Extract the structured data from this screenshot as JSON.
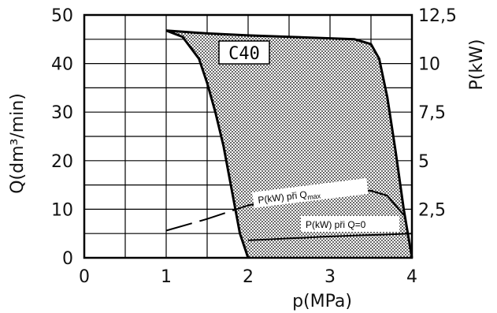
{
  "chart_data": {
    "type": "area",
    "x_axis": {
      "label": "p(MPa)",
      "ticks": [
        "0",
        "1",
        "2",
        "3",
        "4"
      ],
      "range": [
        0,
        4
      ]
    },
    "y_axis_left": {
      "label": "Q(dm³/min)",
      "ticks": [
        "0",
        "10",
        "20",
        "30",
        "40",
        "50"
      ],
      "range": [
        0,
        50
      ]
    },
    "y_axis_right": {
      "label": "P(kW)",
      "ticks": [
        "2,5",
        "5",
        "7,5",
        "10",
        "12,5"
      ],
      "range": [
        0,
        12.5
      ]
    },
    "region_label": "C40",
    "annotation_qmax": "P(kW) při Q",
    "annotation_qmax_sub": "max",
    "annotation_q0": "P(kW) při Q=0",
    "series": [
      {
        "name": "Q left boundary",
        "x": [
          1.0,
          1.2,
          1.4,
          1.5,
          1.6,
          1.7,
          1.8,
          1.9,
          2.0
        ],
        "y": [
          46.8,
          45.5,
          41.0,
          36.0,
          30.0,
          23.0,
          14.0,
          5.0,
          0.0
        ]
      },
      {
        "name": "Q right boundary",
        "x": [
          1.0,
          1.5,
          2.0,
          2.5,
          3.0,
          3.3,
          3.5,
          3.6,
          3.7,
          3.8,
          3.9,
          4.0
        ],
        "y": [
          46.8,
          46.2,
          45.8,
          45.5,
          45.2,
          45.0,
          44.0,
          41.0,
          33.0,
          22.0,
          10.0,
          0.0
        ]
      },
      {
        "name": "P(kW) při Qmax",
        "x": [
          1.0,
          1.5,
          2.0,
          2.5,
          3.0,
          3.3,
          3.5,
          3.7,
          3.9
        ],
        "y": [
          1.4,
          2.0,
          2.7,
          3.1,
          3.35,
          3.45,
          3.45,
          3.2,
          2.2
        ],
        "style": "dashed-then-solid"
      },
      {
        "name": "P(kW) při Q=0",
        "x": [
          2.0,
          3.0,
          4.0
        ],
        "y": [
          0.9,
          1.1,
          1.25
        ]
      }
    ],
    "grid": true,
    "shaded_region": "between Q left boundary and Q right boundary"
  }
}
